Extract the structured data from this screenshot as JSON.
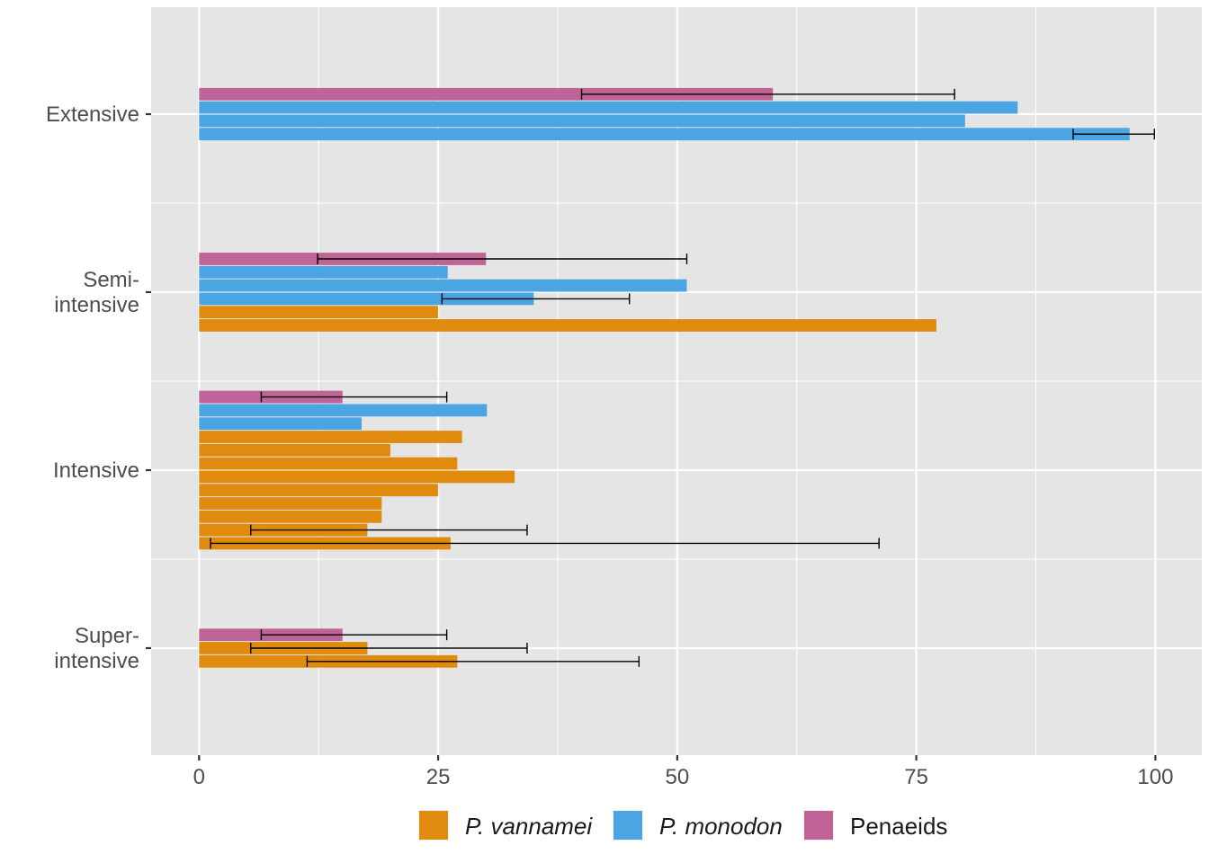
{
  "chart_data": {
    "type": "bar",
    "orientation": "horizontal",
    "xlabel": "",
    "ylabel": "",
    "xlim": [
      -9.8,
      100
    ],
    "x_ticks": [
      0,
      25,
      50,
      75,
      100
    ],
    "x_tick_labels": [
      "0",
      "25",
      "50",
      "75",
      "100"
    ],
    "grid": true,
    "legend_position": "bottom",
    "series_colors": {
      "P. vannamei": "#E08B0E",
      "P. monodon": "#4BA5E3",
      "Penaeids": "#C06497"
    },
    "legend": [
      {
        "name": "P. vannamei",
        "italic": true
      },
      {
        "name": "P. monodon",
        "italic": true
      },
      {
        "name": "Penaeids",
        "italic": false
      }
    ],
    "categories": [
      {
        "label_lines": [
          "Extensive"
        ],
        "bars": [
          {
            "series": "Penaeids",
            "value": 60,
            "err_low": 40,
            "err_high": 79
          },
          {
            "series": "P. monodon",
            "value": 85.6
          },
          {
            "series": "P. monodon",
            "value": 80.1
          },
          {
            "series": "P. monodon",
            "value": 97.3,
            "err_low": 91.4,
            "err_high": 99.9
          }
        ]
      },
      {
        "label_lines": [
          "Semi-",
          "intensive"
        ],
        "bars": [
          {
            "series": "Penaeids",
            "value": 30,
            "err_low": 12.4,
            "err_high": 51
          },
          {
            "series": "P. monodon",
            "value": 26
          },
          {
            "series": "P. monodon",
            "value": 51
          },
          {
            "series": "P. monodon",
            "value": 35,
            "err_low": 25.4,
            "err_high": 45
          },
          {
            "series": "P. vannamei",
            "value": 25
          },
          {
            "series": "P. vannamei",
            "value": 77.1
          }
        ]
      },
      {
        "label_lines": [
          "Intensive"
        ],
        "bars": [
          {
            "series": "Penaeids",
            "value": 15,
            "err_low": 6.5,
            "err_high": 25.9
          },
          {
            "series": "P. monodon",
            "value": 30.1
          },
          {
            "series": "P. monodon",
            "value": 17
          },
          {
            "series": "P. vannamei",
            "value": 27.5
          },
          {
            "series": "P. vannamei",
            "value": 20
          },
          {
            "series": "P. vannamei",
            "value": 27
          },
          {
            "series": "P. vannamei",
            "value": 33
          },
          {
            "series": "P. vannamei",
            "value": 25
          },
          {
            "series": "P. vannamei",
            "value": 19.1
          },
          {
            "series": "P. vannamei",
            "value": 19.1
          },
          {
            "series": "P. vannamei",
            "value": 17.6,
            "err_low": 5.4,
            "err_high": 34.3
          },
          {
            "series": "P. vannamei",
            "value": 26.3,
            "err_low": 1.2,
            "err_high": 71.1
          }
        ]
      },
      {
        "label_lines": [
          "Super-",
          "intensive"
        ],
        "bars": [
          {
            "series": "Penaeids",
            "value": 15,
            "err_low": 6.5,
            "err_high": 25.9
          },
          {
            "series": "P. vannamei",
            "value": 17.6,
            "err_low": 5.4,
            "err_high": 34.3
          },
          {
            "series": "P. vannamei",
            "value": 27,
            "err_low": 11.3,
            "err_high": 46
          }
        ]
      }
    ]
  }
}
